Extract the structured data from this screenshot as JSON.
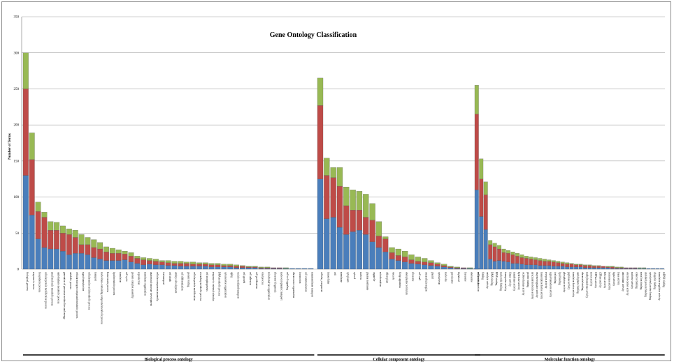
{
  "chart_data": {
    "type": "bar",
    "stacked": true,
    "title": "Gene Ontology Classification",
    "ylabel": "Number of Terms",
    "xlabel": "",
    "ylim": [
      0,
      350
    ],
    "yticks": [
      0,
      50,
      100,
      150,
      200,
      250,
      300,
      350
    ],
    "grid": true,
    "legend": "none",
    "series_colors": [
      "#4a7ebb",
      "#be4b48",
      "#98b954"
    ],
    "groups": [
      {
        "name": "Biological process ontology",
        "categories": [
          "biological_process",
          "response to stress",
          "biosynthetic process",
          "cellular protein modification process",
          "small molecule metabolic process",
          "carbohydrate metabolic process",
          "generation of precursor metabolites and energy",
          "catabolic process",
          "cellular nitrogen compound metabolic process",
          "signal transduction",
          "cellular amino acid metabolic process",
          "transport",
          "nucleobase-containing compound metabolic process",
          "homeostatic process",
          "lipid metabolic process",
          "translation",
          "cell cycle",
          "protein complex assembly",
          "reproduction",
          "membrane organization",
          "anatomical structure development",
          "cellular component assembly",
          "ion transport",
          "cell death",
          "embryo development",
          "cell differentiation",
          "protein folding",
          "cellular protein modification",
          "secondary metabolic process",
          "cell morphogenesis",
          "response to external stimulus",
          "DNA metabolic process",
          "cytoskeleton organization",
          "aging",
          "vesicle-mediated transport",
          "cell growth",
          "cell adhesion",
          "cell proliferation",
          "viral process",
          "mitochondrion organization",
          "ribosome biogenesis",
          "nucleocytoplasmic transport",
          "cell-cell signaling",
          "chromosome organization",
          "locomotion",
          "cell communication",
          "transmembrane transport"
        ],
        "values": [
          [
            130,
            120,
            50
          ],
          [
            75,
            77,
            37
          ],
          [
            42,
            38,
            13
          ],
          [
            30,
            42,
            7
          ],
          [
            28,
            26,
            12
          ],
          [
            28,
            26,
            11
          ],
          [
            25,
            25,
            10
          ],
          [
            20,
            28,
            8
          ],
          [
            22,
            22,
            10
          ],
          [
            22,
            12,
            14
          ],
          [
            20,
            14,
            10
          ],
          [
            16,
            14,
            11
          ],
          [
            14,
            14,
            9
          ],
          [
            12,
            12,
            7
          ],
          [
            12,
            10,
            7
          ],
          [
            12,
            10,
            5
          ],
          [
            13,
            8,
            4
          ],
          [
            10,
            8,
            5
          ],
          [
            8,
            7,
            3
          ],
          [
            6,
            7,
            3
          ],
          [
            7,
            5,
            3
          ],
          [
            6,
            5,
            3
          ],
          [
            6,
            4,
            2
          ],
          [
            5,
            4,
            3
          ],
          [
            5,
            3,
            3
          ],
          [
            4,
            4,
            3
          ],
          [
            4,
            4,
            2
          ],
          [
            4,
            3,
            3
          ],
          [
            4,
            3,
            2
          ],
          [
            4,
            3,
            2
          ],
          [
            3,
            3,
            2
          ],
          [
            3,
            3,
            2
          ],
          [
            3,
            2,
            2
          ],
          [
            3,
            2,
            2
          ],
          [
            2,
            2,
            2
          ],
          [
            2,
            2,
            1
          ],
          [
            2,
            1,
            1
          ],
          [
            2,
            1,
            1
          ],
          [
            1,
            1,
            1
          ],
          [
            1,
            1,
            1
          ],
          [
            1,
            1,
            0
          ],
          [
            1,
            1,
            0
          ],
          [
            1,
            0,
            1
          ],
          [
            1,
            0,
            0
          ],
          [
            1,
            0,
            0
          ],
          [
            1,
            0,
            0
          ],
          [
            1,
            0,
            0
          ]
        ]
      },
      {
        "name": "Cellular component ontology",
        "categories": [
          "cellular_component",
          "intracellular",
          "cell",
          "membrane",
          "cytoplasm",
          "cytosol",
          "nucleus",
          "plasma membrane",
          "organelle",
          "mitochondrion",
          "chloroplast",
          "vacuole",
          "Golgi apparatus",
          "endoplasmic reticulum",
          "ribosome",
          "cell wall",
          "extracellular region",
          "plastid",
          "cytoskeleton",
          "nucleolus",
          "peroxisome",
          "thylakoid",
          "lysosome",
          "endosome",
          "cell junction"
        ],
        "values": [
          [
            125,
            102,
            38
          ],
          [
            70,
            60,
            24
          ],
          [
            72,
            55,
            14
          ],
          [
            58,
            57,
            26
          ],
          [
            48,
            40,
            26
          ],
          [
            52,
            30,
            28
          ],
          [
            54,
            28,
            26
          ],
          [
            48,
            24,
            32
          ],
          [
            38,
            30,
            23
          ],
          [
            30,
            16,
            20
          ],
          [
            24,
            18,
            3
          ],
          [
            14,
            9,
            7
          ],
          [
            12,
            7,
            9
          ],
          [
            10,
            7,
            8
          ],
          [
            8,
            5,
            7
          ],
          [
            7,
            4,
            6
          ],
          [
            6,
            4,
            5
          ],
          [
            5,
            4,
            3
          ],
          [
            4,
            3,
            2
          ],
          [
            3,
            2,
            2
          ],
          [
            2,
            1,
            1
          ],
          [
            1,
            1,
            1
          ],
          [
            1,
            1,
            0
          ],
          [
            1,
            0,
            1
          ],
          [
            1,
            0,
            0
          ]
        ]
      },
      {
        "name": "Molecular function ontology",
        "categories": [
          "molecular_function",
          "binding",
          "catalytic activity",
          "DNA binding",
          "RNA binding",
          "nucleotide binding",
          "transporter activity",
          "kinase activity",
          "transferase activity",
          "hydrolase activity",
          "oxidoreductase activity",
          "protein binding",
          "structural molecule activity",
          "enzyme regulator activity",
          "transcription factor activity",
          "receptor activity",
          "signal transducer activity",
          "ion binding",
          "lipid binding",
          "phosphatase activity",
          "peptidase activity",
          "translation factor activity",
          "carbohydrate binding",
          "chromatin binding",
          "methyltransferase activity",
          "motor activity",
          "GTPase activity",
          "ATPase activity",
          "helicase activity",
          "isomerase activity",
          "ligase activity",
          "lyase activity",
          "antioxidant activity",
          "electron carrier activity",
          "nuclease activity",
          "cofactor binding",
          "metal ion binding",
          "unfolded protein binding",
          "cytoskeletal protein binding",
          "ubiquitin binding",
          "translation regulator activity",
          "mRNA binding"
        ],
        "values": [
          [
            110,
            105,
            40
          ],
          [
            73,
            52,
            28
          ],
          [
            55,
            48,
            18
          ],
          [
            14,
            20,
            6
          ],
          [
            11,
            20,
            5
          ],
          [
            12,
            16,
            5
          ],
          [
            11,
            12,
            5
          ],
          [
            10,
            12,
            4
          ],
          [
            8,
            12,
            4
          ],
          [
            8,
            10,
            4
          ],
          [
            7,
            9,
            4
          ],
          [
            6,
            9,
            3
          ],
          [
            6,
            8,
            3
          ],
          [
            6,
            7,
            3
          ],
          [
            5,
            7,
            3
          ],
          [
            5,
            6,
            3
          ],
          [
            5,
            6,
            2
          ],
          [
            4,
            6,
            2
          ],
          [
            4,
            5,
            2
          ],
          [
            4,
            4,
            2
          ],
          [
            3,
            4,
            2
          ],
          [
            3,
            4,
            1
          ],
          [
            3,
            3,
            1
          ],
          [
            3,
            3,
            1
          ],
          [
            2,
            3,
            1
          ],
          [
            2,
            3,
            1
          ],
          [
            2,
            2,
            1
          ],
          [
            2,
            2,
            1
          ],
          [
            2,
            2,
            0
          ],
          [
            2,
            1,
            1
          ],
          [
            1,
            2,
            1
          ],
          [
            1,
            1,
            1
          ],
          [
            1,
            1,
            1
          ],
          [
            1,
            1,
            0
          ],
          [
            1,
            1,
            0
          ],
          [
            1,
            1,
            0
          ],
          [
            1,
            0,
            1
          ],
          [
            1,
            0,
            1
          ],
          [
            1,
            0,
            0
          ],
          [
            1,
            0,
            0
          ],
          [
            1,
            0,
            0
          ],
          [
            1,
            0,
            0
          ]
        ]
      }
    ]
  }
}
